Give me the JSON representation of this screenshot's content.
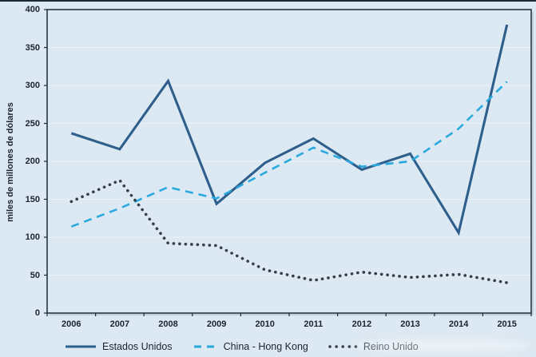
{
  "colors": {
    "background": "#dce8f2",
    "frame": "#1c2a38",
    "gridline": "#eaf2f9",
    "shadow": "#b9c6d2",
    "text": "#1b2330"
  },
  "chart_data": {
    "type": "line",
    "title": "",
    "xlabel": "",
    "ylabel": "miles de millones de dólares",
    "ylim": [
      0,
      400
    ],
    "yticks": [
      0,
      50,
      100,
      150,
      200,
      250,
      300,
      350,
      400
    ],
    "grid": true,
    "legend_position": "bottom",
    "categories": [
      "2006",
      "2007",
      "2008",
      "2009",
      "2010",
      "2011",
      "2012",
      "2013",
      "2014",
      "2015"
    ],
    "series": [
      {
        "name": "Estados Unidos",
        "style": "solid",
        "color": "#2e5f8c",
        "values": [
          237,
          216,
          306,
          144,
          198,
          230,
          189,
          210,
          106,
          380
        ]
      },
      {
        "name": "China - Hong Kong",
        "style": "dashed",
        "color": "#29a9de",
        "values": [
          114,
          138,
          166,
          151,
          185,
          218,
          193,
          200,
          243,
          305
        ]
      },
      {
        "name": "Reino Unido",
        "style": "dotted",
        "color": "#353f4a",
        "values": [
          147,
          175,
          92,
          89,
          57,
          43,
          54,
          47,
          51,
          40
        ]
      }
    ]
  }
}
